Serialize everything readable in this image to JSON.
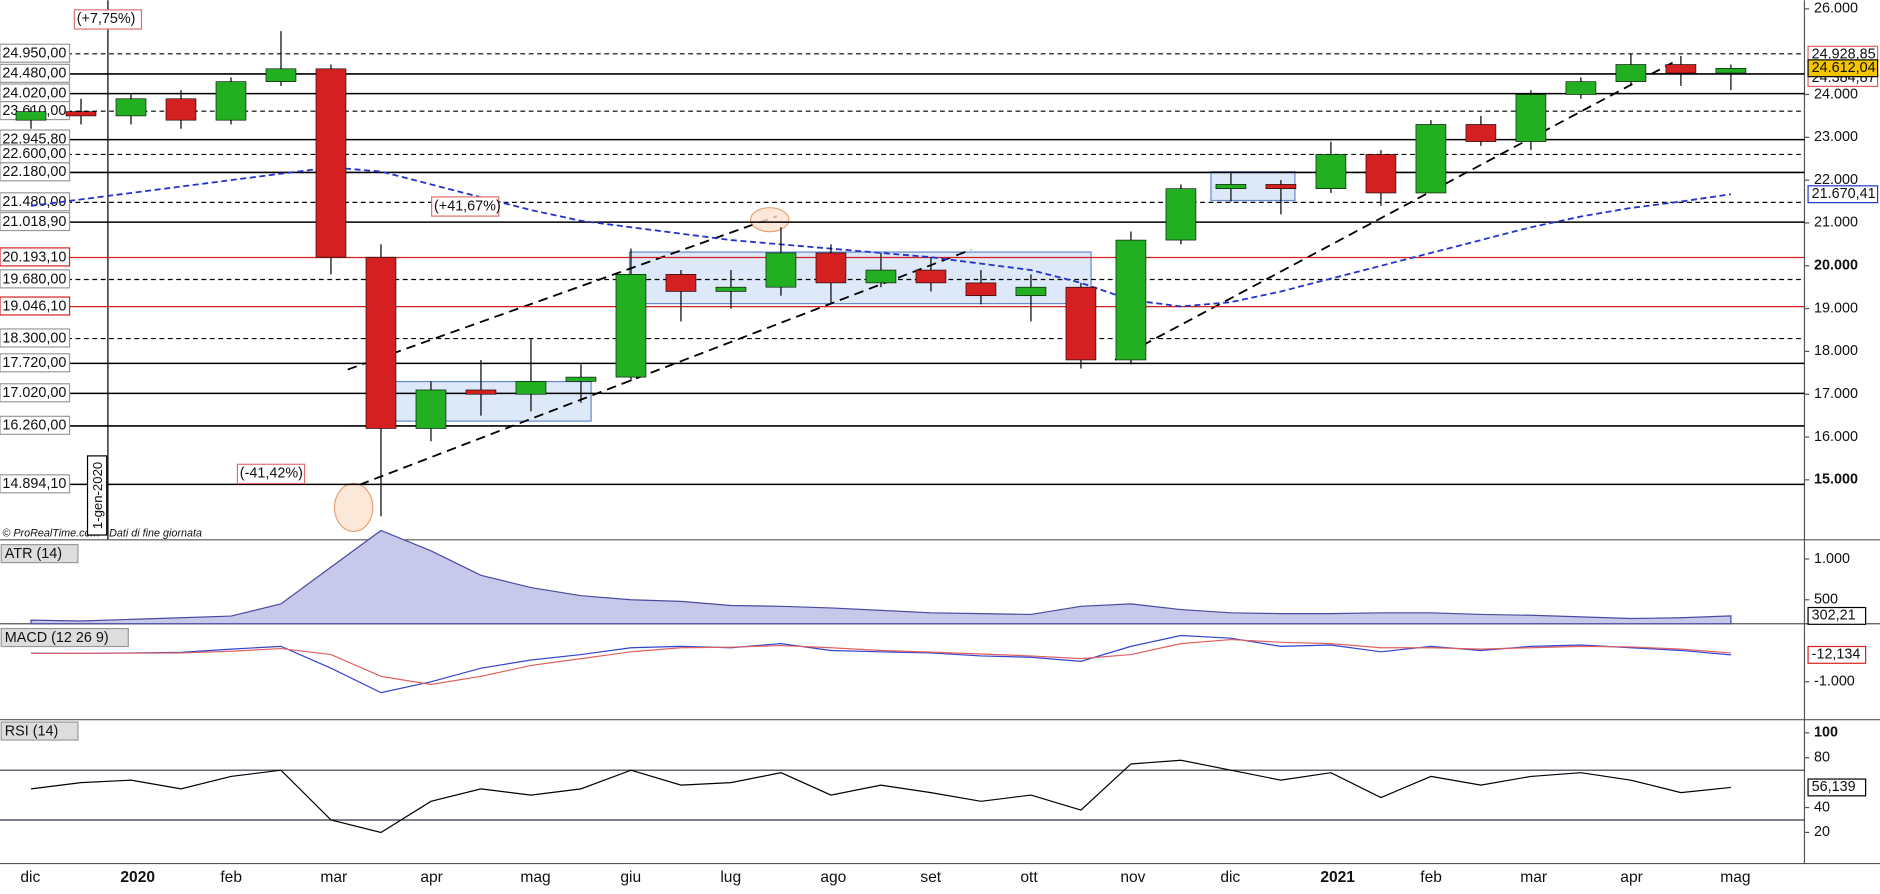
{
  "chart_data": {
    "type": "candlestick",
    "categories": [
      "dic",
      null,
      "2020",
      null,
      "feb",
      null,
      "mar",
      null,
      "apr",
      null,
      "mag",
      null,
      "giu",
      null,
      "lug",
      null,
      "ago",
      null,
      "set",
      null,
      "ott",
      null,
      "nov",
      null,
      "dic",
      null,
      "2021",
      null,
      "feb",
      null,
      "mar",
      null,
      "apr",
      null,
      "mag"
    ],
    "open": [
      23400,
      23600,
      23500,
      23900,
      23400,
      24300,
      24600,
      20200,
      16200,
      17100,
      17000,
      17300,
      17400,
      19800,
      19400,
      19500,
      20300,
      19600,
      19900,
      19600,
      19300,
      19500,
      17800,
      20600,
      21800,
      21900,
      21800,
      22600,
      21700,
      23300,
      22900,
      24000,
      24300,
      24700,
      24500
    ],
    "high": [
      23700,
      23900,
      24000,
      24100,
      24400,
      25480,
      24700,
      20500,
      17300,
      17800,
      18300,
      17700,
      20400,
      19900,
      19900,
      20900,
      20500,
      20300,
      20200,
      19900,
      19800,
      19600,
      20800,
      21900,
      22200,
      22000,
      22900,
      22700,
      23400,
      23500,
      24100,
      24400,
      24950,
      24900,
      24700
    ],
    "low": [
      23200,
      23300,
      23300,
      23200,
      23300,
      24200,
      19800,
      14150,
      15900,
      16500,
      16600,
      16800,
      17300,
      18700,
      19000,
      19300,
      19100,
      19500,
      19400,
      19100,
      18700,
      17600,
      17700,
      20500,
      21500,
      21200,
      21700,
      21400,
      21700,
      22800,
      22700,
      23900,
      24200,
      24200,
      24100
    ],
    "close": [
      23600,
      23500,
      23900,
      23400,
      24300,
      24600,
      20200,
      16200,
      17100,
      17000,
      17300,
      17400,
      19800,
      19400,
      19500,
      20300,
      19600,
      19900,
      19600,
      19300,
      19500,
      17800,
      20600,
      21800,
      21900,
      21800,
      22600,
      21700,
      23300,
      22900,
      24000,
      24300,
      24700,
      24500,
      24612.04
    ],
    "up_color": "#22b022",
    "down_color": "#d42020",
    "close_label": "24.612,04",
    "ma": {
      "color": "#2233cc",
      "values": [
        21400,
        21550,
        21700,
        21850,
        22000,
        22150,
        22300,
        22200,
        21900,
        21600,
        21300,
        21050,
        20900,
        20750,
        20600,
        20500,
        20400,
        20300,
        20200,
        20050,
        19900,
        19600,
        19200,
        19050,
        19150,
        19400,
        19700,
        20000,
        20300,
        20600,
        20900,
        21150,
        21350,
        21500,
        21670.41
      ],
      "last_label": "21.670,41"
    },
    "ylim": [
      13600,
      26200
    ],
    "yticks": [
      {
        "value": 26000,
        "label": "26.000"
      },
      {
        "value": 24000,
        "label": "24.000"
      },
      {
        "value": 23000,
        "label": "23.000"
      },
      {
        "value": 22000,
        "label": "22.000"
      },
      {
        "value": 21000,
        "label": "21.000"
      },
      {
        "value": 20000,
        "label": "20.000"
      },
      {
        "value": 19000,
        "label": "19.000"
      },
      {
        "value": 18000,
        "label": "18.000"
      },
      {
        "value": 17000,
        "label": "17.000"
      },
      {
        "value": 16000,
        "label": "16.000"
      },
      {
        "value": 15000,
        "label": "15.000"
      }
    ],
    "levels": [
      {
        "value": 24950,
        "label": "24.950,00",
        "style": "dashed"
      },
      {
        "value": 24480,
        "label": "24.480,00",
        "style": "solid"
      },
      {
        "value": 24020,
        "label": "24.020,00",
        "style": "solid"
      },
      {
        "value": 23610,
        "label": "23.610,00",
        "style": "dashed"
      },
      {
        "value": 22945.8,
        "label": "22.945,80",
        "style": "solid"
      },
      {
        "value": 22600,
        "label": "22.600,00",
        "style": "dashed"
      },
      {
        "value": 22180,
        "label": "22.180,00",
        "style": "solid"
      },
      {
        "value": 21480,
        "label": "21.480,00",
        "style": "dashed"
      },
      {
        "value": 21018.9,
        "label": "21.018,90",
        "style": "solid"
      },
      {
        "value": 20193.1,
        "label": "20.193,10",
        "style": "red"
      },
      {
        "value": 19680,
        "label": "19.680,00",
        "style": "dashed"
      },
      {
        "value": 19046.1,
        "label": "19.046,10",
        "style": "red"
      },
      {
        "value": 18300,
        "label": "18.300,00",
        "style": "dashed"
      },
      {
        "value": 17720,
        "label": "17.720,00",
        "style": "solid"
      },
      {
        "value": 17020,
        "label": "17.020,00",
        "style": "solid"
      },
      {
        "value": 16260,
        "label": "16.260,00",
        "style": "solid"
      },
      {
        "value": 14894.1,
        "label": "14.894,10",
        "style": "solid"
      }
    ],
    "price_labels": [
      {
        "value": 24928.85,
        "label": "24.928,85",
        "color": "#e06060"
      },
      {
        "value": 24384.87,
        "label": "24.384,87",
        "color": "#e06060"
      }
    ],
    "annotations": [
      "(+7,75%)",
      "(-41,42%)",
      "(+41,67%)"
    ],
    "copyright": "© ProRealTime.com - Dati di fine giornata",
    "cursor_label": "1-gen-2020",
    "indicators": [
      {
        "type": "area",
        "title": "ATR (14)",
        "color": "#4a4aa0",
        "ylim": [
          206,
          1206
        ],
        "yticks": [
          {
            "value": 1000,
            "label": "1.000"
          },
          500
        ],
        "values": [
          250,
          240,
          260,
          280,
          300,
          450,
          900,
          1350,
          1100,
          800,
          650,
          550,
          500,
          480,
          430,
          420,
          400,
          370,
          340,
          330,
          320,
          420,
          450,
          380,
          340,
          330,
          330,
          340,
          340,
          320,
          310,
          290,
          270,
          280,
          302.21
        ],
        "last_label": "302,21"
      },
      {
        "type": "line",
        "title": "MACD (12 26 9)",
        "ylim": [
          -2391,
          1043
        ],
        "yticks": [
          {
            "value": -1000,
            "label": "-1.000"
          }
        ],
        "series": [
          {
            "color": "#3344cc",
            "values": [
              50,
              40,
              60,
              80,
              200,
              300,
              -500,
              -1400,
              -1000,
              -500,
              -200,
              0,
              250,
              300,
              250,
              400,
              150,
              100,
              60,
              -50,
              -100,
              -250,
              300,
              700,
              600,
              300,
              350,
              100,
              300,
              150,
              300,
              350,
              250,
              150,
              -12.134
            ]
          },
          {
            "color": "#e06060",
            "values": [
              40,
              45,
              50,
              60,
              120,
              220,
              0,
              -800,
              -1100,
              -800,
              -400,
              -150,
              100,
              250,
              270,
              330,
              250,
              150,
              90,
              20,
              -50,
              -150,
              0,
              400,
              550,
              450,
              400,
              250,
              250,
              200,
              250,
              300,
              280,
              200,
              60
            ]
          }
        ],
        "last_label": "-12,134"
      },
      {
        "type": "line",
        "title": "RSI (14)",
        "ylim": [
          -5,
          110.6
        ],
        "yticks": [
          100,
          80,
          40,
          20
        ],
        "bands": [
          30,
          70
        ],
        "series": [
          {
            "color": "#000000",
            "values": [
              55,
              60,
              62,
              55,
              65,
              70,
              30,
              20,
              45,
              55,
              50,
              55,
              70,
              58,
              60,
              68,
              50,
              58,
              52,
              45,
              50,
              38,
              75,
              78,
              70,
              62,
              68,
              48,
              65,
              58,
              65,
              68,
              62,
              52,
              56.139
            ]
          }
        ],
        "last_label": "56,139"
      }
    ]
  }
}
